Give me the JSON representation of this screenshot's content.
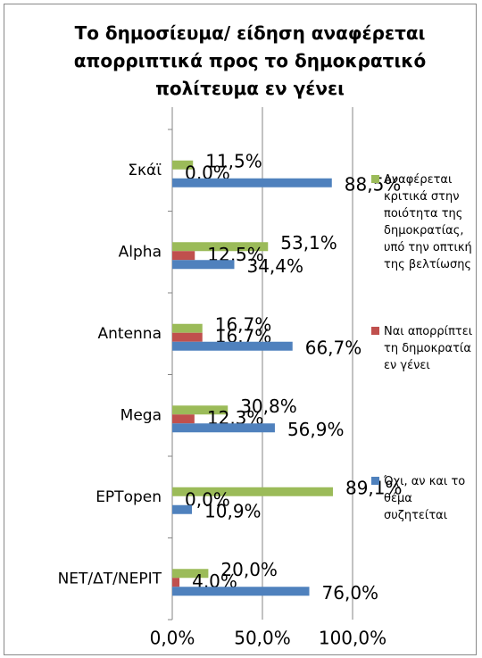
{
  "chart_data": {
    "type": "bar",
    "orientation": "horizontal",
    "title": "Το δημοσίευμα/ είδηση αναφέρεται απορριπτικά προς το δημοκρατικό πολίτευμα εν γένει",
    "categories": [
      "Σκάϊ",
      "Alpha",
      "Antenna",
      "Mega",
      "ΕΡΤopen",
      "ΝΕΤ/ΔΤ/ΝΕΡΙΤ"
    ],
    "series": [
      {
        "name": "Αναφέρεται κριτικά στην ποιότητα της δημοκρατίας, υπό την οπτική της βελτίωσης",
        "color": "#9bbb59",
        "values": [
          11.5,
          53.1,
          16.7,
          30.8,
          89.1,
          20.0
        ],
        "value_labels": [
          "11,5%",
          "53,1%",
          "16,7%",
          "30,8%",
          "89,1%",
          "20,0%"
        ]
      },
      {
        "name": "Ναι απορρίπτει τη δημοκρατία εν γένει",
        "color": "#c0504d",
        "values": [
          0.0,
          12.5,
          16.7,
          12.3,
          0.0,
          4.0
        ],
        "value_labels": [
          "0,0%",
          "12,5%",
          "16,7%",
          "12,3%",
          "0,0%",
          "4,0%"
        ]
      },
      {
        "name": "Όχι, αν και το θέμα συζητείται",
        "color": "#4f81bd",
        "values": [
          88.5,
          34.4,
          66.7,
          56.9,
          10.9,
          76.0
        ],
        "value_labels": [
          "88,5%",
          "34,4%",
          "66,7%",
          "56,9%",
          "10,9%",
          "76,0%"
        ]
      }
    ],
    "xlim": [
      0,
      100
    ],
    "xticks": [
      {
        "value": 0,
        "label": "0,0%"
      },
      {
        "value": 50,
        "label": "50,0%"
      },
      {
        "value": 100,
        "label": "100,0%"
      }
    ],
    "grid": true,
    "legend": "right"
  }
}
